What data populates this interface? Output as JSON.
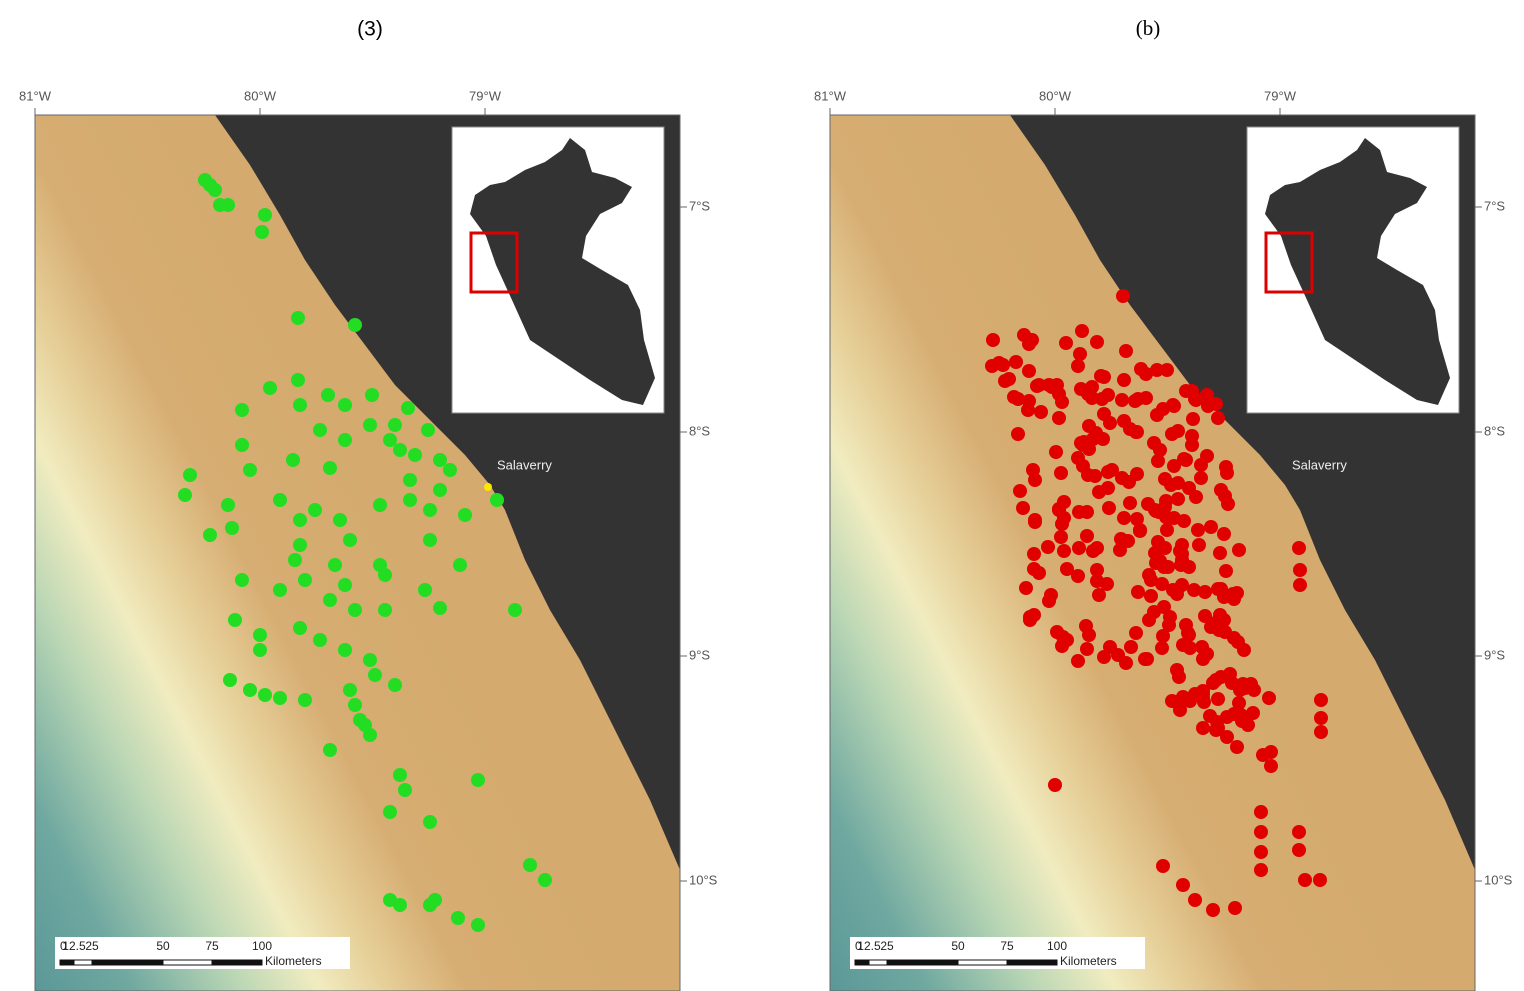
{
  "panels": [
    {
      "label": "(3)"
    },
    {
      "label": "(b)"
    }
  ],
  "longitude_labels": [
    "81°W",
    "80°W",
    "79°W"
  ],
  "latitude_labels": [
    "7°S",
    "8°S",
    "9°S",
    "10°S"
  ],
  "place_label": "Salaverry",
  "scale_bar": {
    "labels": [
      "0",
      "12.5",
      "25",
      "50",
      "75",
      "100"
    ],
    "unit": "Kilometers"
  }
}
